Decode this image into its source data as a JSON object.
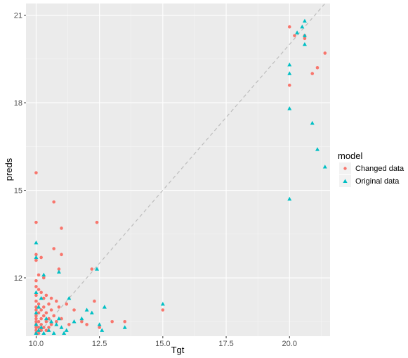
{
  "chart_data": {
    "type": "scatter",
    "xlabel": "Tgt",
    "ylabel": "preds",
    "xlim": [
      9.6,
      21.6
    ],
    "ylim": [
      10.0,
      21.4
    ],
    "x_ticks": [
      10.0,
      12.5,
      15.0,
      17.5,
      20.0
    ],
    "x_tick_labels": [
      "10.0",
      "12.5",
      "15.0",
      "17.5",
      "20.0"
    ],
    "y_ticks": [
      12,
      15,
      18,
      21
    ],
    "y_tick_labels": [
      "12",
      "15",
      "18",
      "21"
    ],
    "grid": true,
    "reference_line": {
      "slope": 1,
      "intercept": 0,
      "style": "dashed"
    },
    "legend": {
      "title": "model",
      "position": "right"
    },
    "series": [
      {
        "name": "Changed data",
        "color": "#F8766D",
        "marker": "circle",
        "points": [
          [
            10.0,
            15.6
          ],
          [
            10.0,
            13.9
          ],
          [
            10.7,
            14.6
          ],
          [
            11.0,
            13.7
          ],
          [
            12.4,
            13.9
          ],
          [
            10.7,
            13.0
          ],
          [
            11.0,
            12.8
          ],
          [
            10.0,
            12.8
          ],
          [
            10.2,
            12.7
          ],
          [
            10.0,
            12.6
          ],
          [
            10.9,
            12.3
          ],
          [
            12.2,
            12.3
          ],
          [
            10.1,
            12.1
          ],
          [
            10.3,
            12.0
          ],
          [
            10.0,
            11.9
          ],
          [
            10.0,
            11.7
          ],
          [
            10.1,
            11.6
          ],
          [
            10.2,
            11.5
          ],
          [
            10.4,
            11.4
          ],
          [
            10.0,
            11.4
          ],
          [
            10.6,
            11.3
          ],
          [
            10.3,
            11.3
          ],
          [
            10.0,
            11.2
          ],
          [
            10.8,
            11.2
          ],
          [
            11.2,
            11.1
          ],
          [
            10.1,
            11.1
          ],
          [
            10.5,
            11.1
          ],
          [
            10.0,
            11.0
          ],
          [
            10.3,
            11.0
          ],
          [
            10.9,
            11.0
          ],
          [
            10.2,
            10.9
          ],
          [
            10.6,
            10.9
          ],
          [
            10.0,
            10.9
          ],
          [
            11.5,
            10.9
          ],
          [
            10.4,
            10.8
          ],
          [
            10.1,
            10.8
          ],
          [
            10.0,
            10.7
          ],
          [
            10.7,
            10.7
          ],
          [
            10.3,
            10.7
          ],
          [
            10.0,
            10.6
          ],
          [
            10.2,
            10.6
          ],
          [
            10.5,
            10.6
          ],
          [
            11.0,
            10.6
          ],
          [
            10.1,
            10.5
          ],
          [
            10.0,
            10.5
          ],
          [
            10.4,
            10.5
          ],
          [
            10.8,
            10.5
          ],
          [
            10.0,
            10.4
          ],
          [
            10.2,
            10.4
          ],
          [
            10.6,
            10.4
          ],
          [
            11.3,
            10.4
          ],
          [
            10.1,
            10.3
          ],
          [
            10.0,
            10.3
          ],
          [
            10.3,
            10.3
          ],
          [
            10.5,
            10.3
          ],
          [
            10.0,
            10.2
          ],
          [
            10.2,
            10.2
          ],
          [
            10.4,
            10.2
          ],
          [
            10.1,
            10.1
          ],
          [
            10.0,
            10.1
          ],
          [
            11.8,
            10.5
          ],
          [
            12.0,
            10.4
          ],
          [
            12.5,
            10.3
          ],
          [
            13.0,
            10.5
          ],
          [
            13.5,
            10.5
          ],
          [
            12.3,
            11.2
          ],
          [
            15.0,
            10.9
          ],
          [
            20.0,
            20.6
          ],
          [
            20.6,
            20.3
          ],
          [
            20.6,
            20.2
          ],
          [
            20.9,
            19.0
          ],
          [
            21.1,
            19.2
          ],
          [
            21.4,
            19.7
          ],
          [
            20.0,
            18.6
          ],
          [
            20.2,
            20.3
          ]
        ]
      },
      {
        "name": "Original data",
        "color": "#00BFC4",
        "marker": "triangle",
        "points": [
          [
            10.0,
            13.2
          ],
          [
            10.0,
            12.7
          ],
          [
            10.9,
            12.2
          ],
          [
            12.4,
            12.3
          ],
          [
            10.3,
            12.1
          ],
          [
            11.3,
            11.3
          ],
          [
            10.0,
            11.5
          ],
          [
            10.1,
            11.0
          ],
          [
            10.2,
            11.3
          ],
          [
            10.0,
            10.8
          ],
          [
            10.4,
            10.6
          ],
          [
            10.6,
            10.5
          ],
          [
            10.0,
            10.4
          ],
          [
            10.2,
            10.3
          ],
          [
            10.8,
            10.4
          ],
          [
            11.0,
            10.3
          ],
          [
            10.1,
            10.2
          ],
          [
            10.3,
            10.1
          ],
          [
            10.5,
            10.2
          ],
          [
            10.0,
            10.1
          ],
          [
            10.7,
            10.1
          ],
          [
            11.2,
            10.2
          ],
          [
            11.5,
            10.5
          ],
          [
            11.8,
            10.6
          ],
          [
            12.0,
            10.9
          ],
          [
            12.2,
            10.8
          ],
          [
            12.5,
            10.4
          ],
          [
            12.6,
            10.2
          ],
          [
            12.7,
            11.0
          ],
          [
            13.5,
            10.3
          ],
          [
            11.1,
            10.1
          ],
          [
            10.9,
            10.6
          ],
          [
            15.0,
            11.1
          ],
          [
            20.0,
            19.3
          ],
          [
            20.0,
            19.0
          ],
          [
            20.3,
            20.4
          ],
          [
            20.5,
            20.6
          ],
          [
            20.6,
            20.8
          ],
          [
            20.6,
            20.0
          ],
          [
            20.0,
            17.8
          ],
          [
            20.9,
            17.3
          ],
          [
            21.1,
            16.4
          ],
          [
            21.4,
            15.8
          ],
          [
            20.0,
            14.7
          ],
          [
            20.6,
            20.3
          ]
        ]
      }
    ]
  }
}
